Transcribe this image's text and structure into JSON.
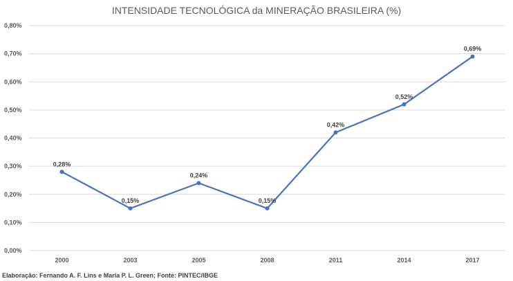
{
  "chart_data": {
    "type": "line",
    "title": "INTENSIDADE TECNOLÓGICA da MINERAÇÃO BRASILEIRA (%)",
    "categories": [
      "2000",
      "2003",
      "2005",
      "2008",
      "2011",
      "2014",
      "2017"
    ],
    "values": [
      0.28,
      0.15,
      0.24,
      0.15,
      0.42,
      0.52,
      0.69
    ],
    "data_labels": [
      "0,28%",
      "0,15%",
      "0,24%",
      "0,15%",
      "0,42%",
      "0,52%",
      "0,69%"
    ],
    "ylim": [
      0,
      0.8
    ],
    "yticks": [
      "0,00%",
      "0,10%",
      "0,20%",
      "0,30%",
      "0,40%",
      "0,50%",
      "0,60%",
      "0,70%",
      "0,80%"
    ],
    "xlabel": "",
    "ylabel": "",
    "grid": true,
    "legend": "none",
    "line_color": "#4472C4",
    "footnote": "Elaboração: Fernando A. F. Lins e Maria P. L. Green; Fonte: PINTEC/IBGE"
  }
}
